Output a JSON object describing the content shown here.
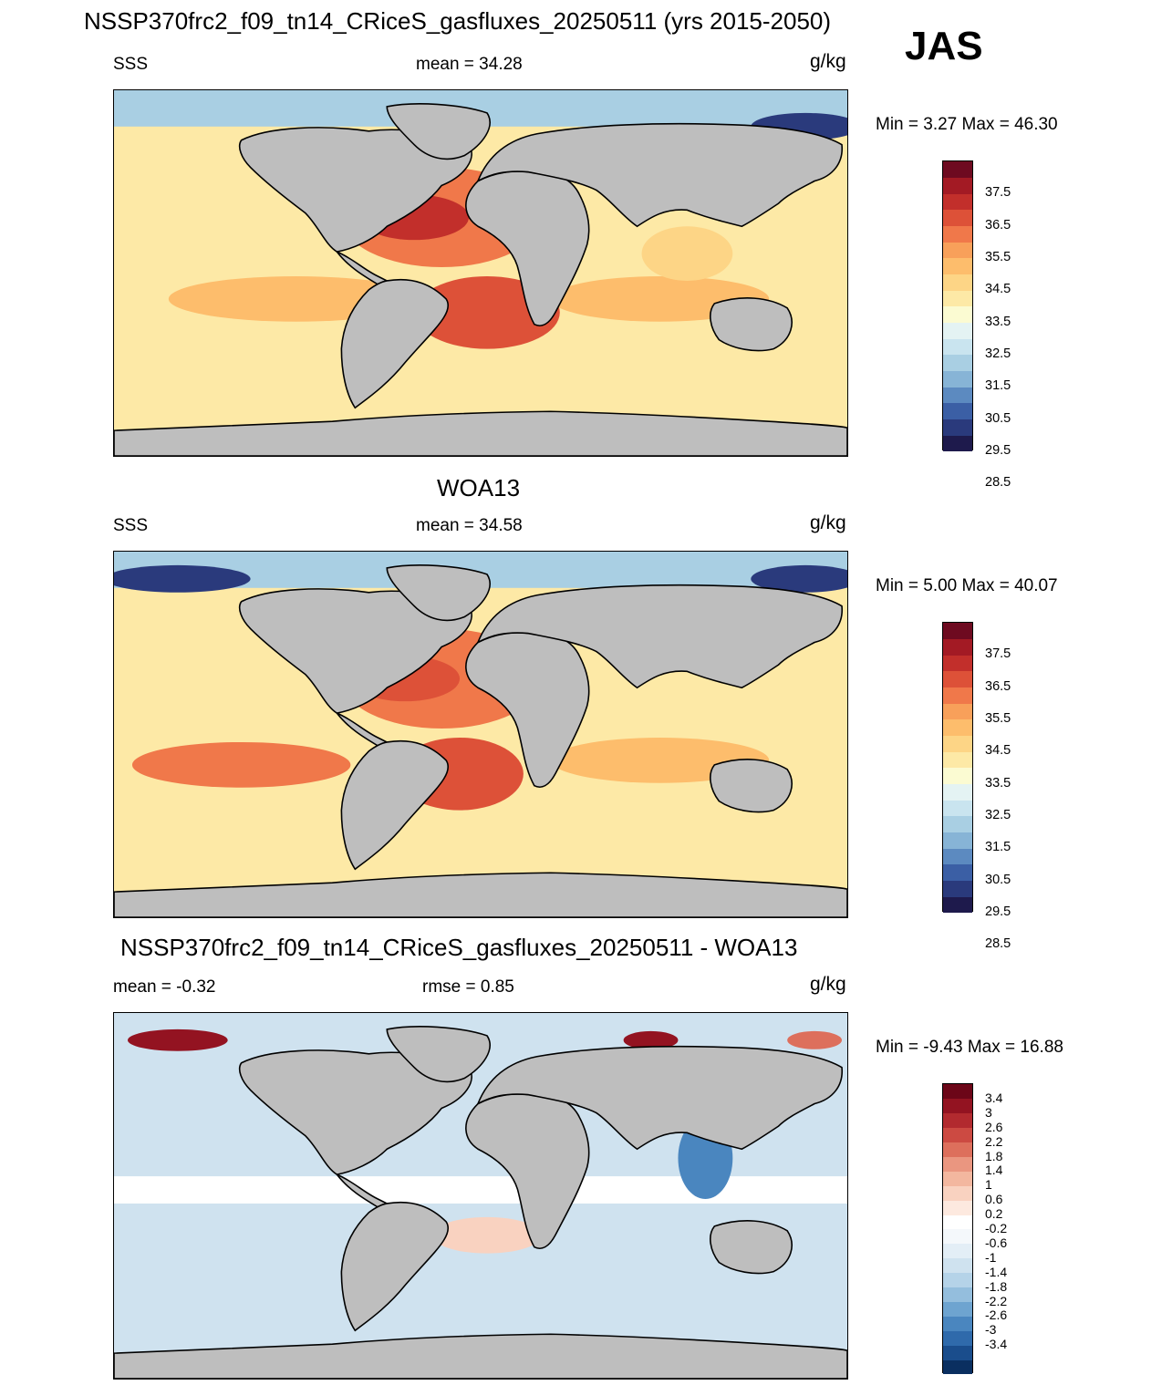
{
  "header": {
    "title": "NSSP370frc2_f09_tn14_CRiceS_gasfluxes_20250511 (yrs 2015-2050)",
    "season": "JAS"
  },
  "panels": [
    {
      "id": "model",
      "variable": "SSS",
      "mean_text": "mean =  34.28",
      "units": "g/kg",
      "minmax_text": "Min =    3.27 Max =  46.30"
    },
    {
      "id": "obs",
      "title": "WOA13",
      "variable": "SSS",
      "mean_text": "mean =  34.58",
      "units": "g/kg",
      "minmax_text": "Min =    5.00 Max =  40.07"
    },
    {
      "id": "diff",
      "title": "NSSP370frc2_f09_tn14_CRiceS_gasfluxes_20250511 - WOA13",
      "mean_text": "mean =  -0.32",
      "rmse_text": "rmse =   0.85",
      "units": "g/kg",
      "minmax_text": "Min =  -9.43 Max =  16.88"
    }
  ],
  "colorbars": {
    "sss_labels": [
      "37.5",
      "36.5",
      "35.5",
      "34.5",
      "33.5",
      "32.5",
      "31.5",
      "30.5",
      "29.5",
      "28.5"
    ],
    "sss_colors": [
      "#1e1a4c",
      "#2a3a7c",
      "#3b5fa5",
      "#5c8ac0",
      "#87b4d6",
      "#a9cfe3",
      "#c9e4ef",
      "#e4f3f3",
      "#fbfbd2",
      "#fde9a6",
      "#fdd586",
      "#fdbd6c",
      "#f8a05a",
      "#f0784a",
      "#dd5138",
      "#c22f2b",
      "#a31a24",
      "#6e0a20"
    ],
    "diff_labels": [
      "3.4",
      "3",
      "2.6",
      "2.2",
      "1.8",
      "1.4",
      "1",
      "0.6",
      "0.2",
      "-0.2",
      "-0.6",
      "-1",
      "-1.4",
      "-1.8",
      "-2.2",
      "-2.6",
      "-3",
      "-3.4"
    ],
    "diff_colors": [
      "#0a2f60",
      "#1a4d8c",
      "#2f6aab",
      "#4a86bf",
      "#6ea4d0",
      "#94bedd",
      "#b5d3e8",
      "#cfe2ef",
      "#e3eef6",
      "#f4f8fb",
      "#ffffff",
      "#fde9df",
      "#f9d2c0",
      "#f3b79f",
      "#ea9680",
      "#dd6f5c",
      "#cc4a42",
      "#b22a2f",
      "#931321",
      "#6c0618"
    ]
  }
}
